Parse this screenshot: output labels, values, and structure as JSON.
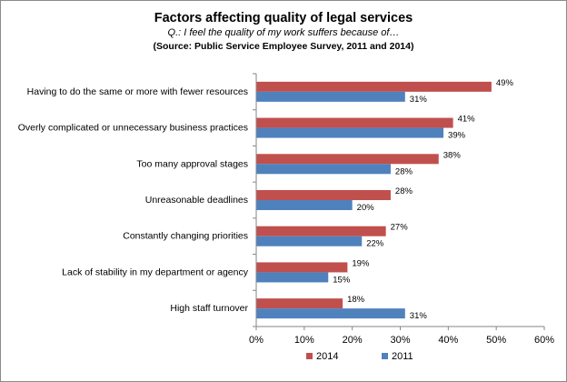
{
  "chart_data": {
    "type": "bar",
    "orientation": "horizontal",
    "title": "Factors affecting quality of legal services",
    "subtitle": "Q.: I feel the quality of my work suffers because of…",
    "source": "(Source: Public Service Employee Survey, 2011 and 2014)",
    "categories": [
      "Having to do the same or more with fewer resources",
      "Overly complicated or unnecessary business practices",
      "Too many approval stages",
      "Unreasonable deadlines",
      "Constantly changing priorities",
      "Lack of stability in my department or agency",
      "High staff turnover"
    ],
    "series": [
      {
        "name": "2014",
        "color": "#c0504d",
        "values": [
          49,
          41,
          38,
          28,
          27,
          19,
          18
        ],
        "labels": [
          "49%",
          "41%",
          "38%",
          "28%",
          "27%",
          "19%",
          "18%"
        ]
      },
      {
        "name": "2011",
        "color": "#4f81bd",
        "values": [
          31,
          39,
          28,
          20,
          22,
          15,
          31
        ],
        "labels": [
          "31%",
          "39%",
          "28%",
          "20%",
          "22%",
          "15%",
          "31%"
        ]
      }
    ],
    "xlim": [
      0,
      60
    ],
    "xticks": [
      0,
      10,
      20,
      30,
      40,
      50,
      60
    ],
    "xtick_labels": [
      "0%",
      "10%",
      "20%",
      "30%",
      "40%",
      "50%",
      "60%"
    ],
    "grid": false,
    "legend_position": "bottom"
  }
}
